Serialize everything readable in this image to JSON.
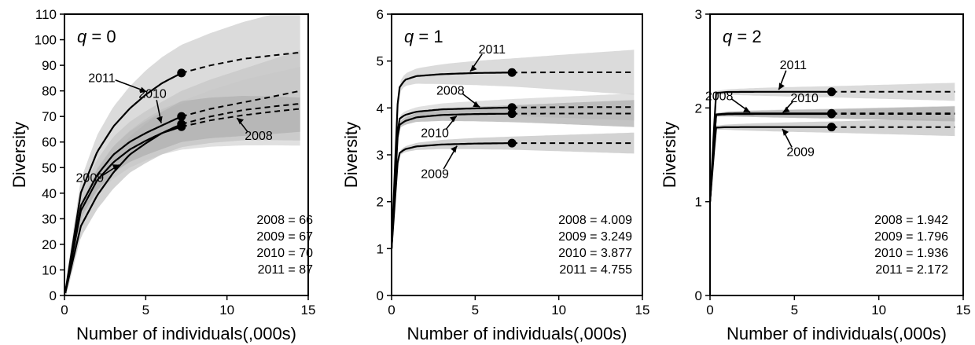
{
  "chart_data": [
    {
      "type": "line",
      "title": "q = 0",
      "xlabel": "Number of individuals(,000s)",
      "ylabel": "Diversity",
      "xlim": [
        0,
        15
      ],
      "ylim": [
        0,
        110
      ],
      "xticks": [
        0,
        5,
        10,
        15
      ],
      "yticks": [
        0,
        10,
        20,
        30,
        40,
        50,
        60,
        70,
        80,
        90,
        100,
        110
      ],
      "grid": false,
      "observed_x": 7.2,
      "x_max": 14.5,
      "series": [
        {
          "name": "2008",
          "observed": 66,
          "x": [
            0.05,
            1,
            2,
            3,
            4,
            5,
            6,
            7.2,
            9,
            11,
            13,
            14.5
          ],
          "y": [
            1,
            33,
            45,
            52,
            57,
            60.5,
            63.5,
            66,
            68.5,
            70.5,
            72,
            73
          ],
          "band": 9
        },
        {
          "name": "2009",
          "observed": 67,
          "x": [
            0.05,
            1,
            2,
            3,
            4,
            5,
            6,
            7.2,
            9,
            11,
            13,
            14.5
          ],
          "y": [
            1,
            27,
            39,
            48,
            55,
            59.5,
            63.5,
            67,
            70,
            72.5,
            74,
            75
          ],
          "band": 9
        },
        {
          "name": "2010",
          "observed": 70,
          "x": [
            0.05,
            1,
            2,
            3,
            4,
            5,
            6,
            7.2,
            9,
            11,
            13,
            14.5
          ],
          "y": [
            1,
            35,
            47,
            55,
            60,
            63.5,
            66.5,
            70,
            73,
            75.5,
            78,
            80
          ],
          "band": 10
        },
        {
          "name": "2011",
          "observed": 87,
          "x": [
            0.05,
            1,
            2,
            3,
            4,
            5,
            6,
            7.2,
            9,
            11,
            13,
            14.5
          ],
          "y": [
            1,
            40,
            56,
            66,
            73,
            78.5,
            83,
            87,
            90,
            92.5,
            94,
            95
          ],
          "band": 11
        }
      ],
      "annotations": [
        {
          "text": "2011",
          "series": "2011",
          "at_x": 5.2
        },
        {
          "text": "2010",
          "series": "2010",
          "at_x": 6.0
        },
        {
          "text": "2009",
          "series": "2009",
          "at_x": 3.5
        },
        {
          "text": "2008",
          "series": "2008",
          "at_x": 10.5
        }
      ],
      "stats": [
        "2008 = 66",
        "2009 = 67",
        "2010 = 70",
        "2011 = 87"
      ]
    },
    {
      "type": "line",
      "title": "q = 1",
      "xlabel": "Number of individuals(,000s)",
      "ylabel": "Diversity",
      "xlim": [
        0,
        15
      ],
      "ylim": [
        0,
        6
      ],
      "xticks": [
        0,
        5,
        10,
        15
      ],
      "yticks": [
        0,
        1,
        2,
        3,
        4,
        5,
        6
      ],
      "grid": false,
      "observed_x": 7.2,
      "x_max": 14.5,
      "series": [
        {
          "name": "2008",
          "observed": 4.009,
          "x": [
            0,
            0.4,
            0.8,
            1.5,
            3,
            5,
            7.2,
            10,
            14.5
          ],
          "y": [
            1,
            3.75,
            3.85,
            3.92,
            3.97,
            3.99,
            4.009,
            4.015,
            4.02
          ],
          "band": 0.18
        },
        {
          "name": "2009",
          "observed": 3.249,
          "x": [
            0,
            0.4,
            0.8,
            1.5,
            3,
            5,
            7.2,
            10,
            14.5
          ],
          "y": [
            1,
            3.02,
            3.12,
            3.18,
            3.22,
            3.24,
            3.249,
            3.25,
            3.25
          ],
          "band": 0.14
        },
        {
          "name": "2010",
          "observed": 3.877,
          "x": [
            0,
            0.4,
            0.8,
            1.5,
            3,
            5,
            7.2,
            10,
            14.5
          ],
          "y": [
            1,
            3.62,
            3.72,
            3.8,
            3.85,
            3.87,
            3.877,
            3.88,
            3.88
          ],
          "band": 0.18
        },
        {
          "name": "2011",
          "observed": 4.755,
          "x": [
            0,
            0.4,
            0.8,
            1.5,
            3,
            5,
            7.2,
            10,
            14.5
          ],
          "y": [
            1,
            4.4,
            4.6,
            4.68,
            4.72,
            4.745,
            4.755,
            4.76,
            4.76
          ],
          "band": 0.3
        }
      ],
      "annotations": [
        {
          "text": "2011",
          "series": "2011",
          "at_x": 4.6
        },
        {
          "text": "2008",
          "series": "2008",
          "at_x": 5.4
        },
        {
          "text": "2010",
          "series": "2010",
          "at_x": 4.0
        },
        {
          "text": "2009",
          "series": "2009",
          "at_x": 4.0
        }
      ],
      "stats": [
        "2008 = 4.009",
        "2009 = 3.249",
        "2010 = 3.877",
        "2011 = 4.755"
      ]
    },
    {
      "type": "line",
      "title": "q = 2",
      "xlabel": "Number of individuals(,000s)",
      "ylabel": "Diversity",
      "xlim": [
        0,
        15
      ],
      "ylim": [
        0,
        3
      ],
      "xticks": [
        0,
        5,
        10,
        15
      ],
      "yticks": [
        0,
        1,
        2,
        3
      ],
      "grid": false,
      "observed_x": 7.2,
      "x_max": 14.5,
      "series": [
        {
          "name": "2008",
          "observed": 1.942,
          "x": [
            0,
            0.35,
            1,
            3,
            5,
            7.2,
            10,
            14.5
          ],
          "y": [
            1,
            1.93,
            1.94,
            1.942,
            1.942,
            1.942,
            1.942,
            1.942
          ],
          "band": 0.05
        },
        {
          "name": "2009",
          "observed": 1.796,
          "x": [
            0,
            0.35,
            1,
            3,
            5,
            7.2,
            10,
            14.5
          ],
          "y": [
            1,
            1.79,
            1.795,
            1.796,
            1.796,
            1.796,
            1.796,
            1.796
          ],
          "band": 0.06
        },
        {
          "name": "2010",
          "observed": 1.936,
          "x": [
            0,
            0.35,
            1,
            3,
            5,
            7.2,
            10,
            14.5
          ],
          "y": [
            1,
            1.925,
            1.933,
            1.936,
            1.936,
            1.936,
            1.936,
            1.936
          ],
          "band": 0.05
        },
        {
          "name": "2011",
          "observed": 2.172,
          "x": [
            0,
            0.35,
            1,
            3,
            5,
            7.2,
            10,
            14.5
          ],
          "y": [
            1,
            2.16,
            2.17,
            2.172,
            2.172,
            2.172,
            2.172,
            2.172
          ],
          "band": 0.06
        }
      ],
      "annotations": [
        {
          "text": "2011",
          "series": "2011",
          "at_x": 4.0
        },
        {
          "text": "2008",
          "series": "2008",
          "at_x": 2.5
        },
        {
          "text": "2010",
          "series": "2010",
          "at_x": 4.2
        },
        {
          "text": "2009",
          "series": "2009",
          "at_x": 4.2
        }
      ],
      "stats": [
        "2008 = 1.942",
        "2009 = 1.796",
        "2010 = 1.936",
        "2011 = 2.172"
      ]
    }
  ]
}
